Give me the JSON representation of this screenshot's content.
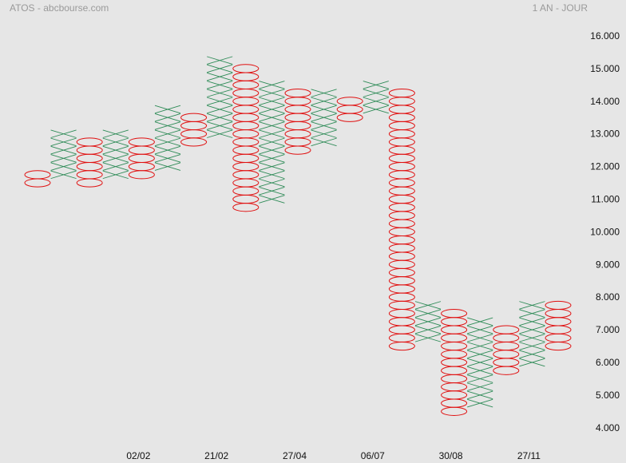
{
  "header": {
    "left": "ATOS - abcbourse.com",
    "right": "1 AN - JOUR"
  },
  "colors": {
    "x_mark": "#2e8b57",
    "o_mark": "#e01010",
    "background": "#e6e6e6"
  },
  "chart_data": {
    "type": "point-and-figure",
    "title": "",
    "ylim": [
      3.8,
      16.4
    ],
    "box_size": 0.25,
    "y_ticks": [
      "16.000",
      "15.000",
      "14.000",
      "13.000",
      "12.000",
      "11.000",
      "10.000",
      "9.000",
      "8.000",
      "7.000",
      "6.000",
      "5.000",
      "4.000"
    ],
    "x_labels": [
      {
        "text": "02/02",
        "column": 4
      },
      {
        "text": "21/02",
        "column": 7
      },
      {
        "text": "27/04",
        "column": 10
      },
      {
        "text": "06/07",
        "column": 13
      },
      {
        "text": "30/08",
        "column": 16
      },
      {
        "text": "27/11",
        "column": 19
      }
    ],
    "columns": [
      {
        "type": "O",
        "high": 11.75,
        "low": 11.5
      },
      {
        "type": "X",
        "high": 13.0,
        "low": 11.75
      },
      {
        "type": "O",
        "high": 12.75,
        "low": 11.5
      },
      {
        "type": "X",
        "high": 13.0,
        "low": 11.75
      },
      {
        "type": "O",
        "high": 12.75,
        "low": 11.75
      },
      {
        "type": "X",
        "high": 13.75,
        "low": 12.0
      },
      {
        "type": "O",
        "high": 13.5,
        "low": 12.75
      },
      {
        "type": "X",
        "high": 15.25,
        "low": 13.0
      },
      {
        "type": "O",
        "high": 15.0,
        "low": 10.75
      },
      {
        "type": "X",
        "high": 14.5,
        "low": 11.0
      },
      {
        "type": "O",
        "high": 14.25,
        "low": 12.5
      },
      {
        "type": "X",
        "high": 14.25,
        "low": 12.75
      },
      {
        "type": "O",
        "high": 14.0,
        "low": 13.5
      },
      {
        "type": "X",
        "high": 14.5,
        "low": 13.75
      },
      {
        "type": "O",
        "high": 14.25,
        "low": 6.5
      },
      {
        "type": "X",
        "high": 7.75,
        "low": 6.75
      },
      {
        "type": "O",
        "high": 7.5,
        "low": 4.5
      },
      {
        "type": "X",
        "high": 7.25,
        "low": 4.75
      },
      {
        "type": "O",
        "high": 7.0,
        "low": 5.75
      },
      {
        "type": "X",
        "high": 7.75,
        "low": 6.0
      },
      {
        "type": "O",
        "high": 7.75,
        "low": 6.5
      }
    ]
  }
}
